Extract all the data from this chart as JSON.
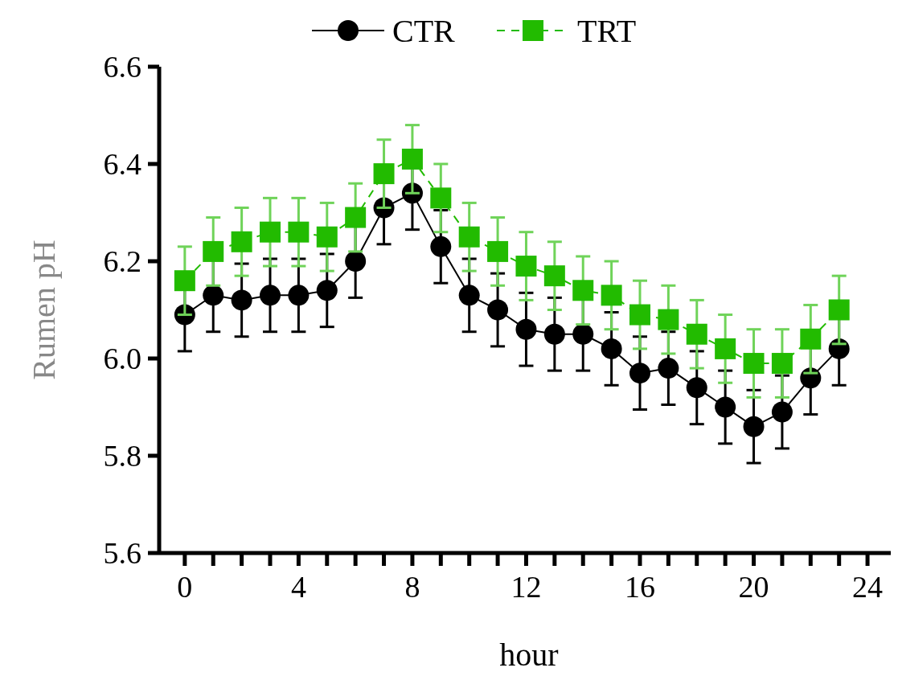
{
  "chart_data": {
    "type": "line",
    "xlabel": "hour",
    "ylabel": "Rumen pH",
    "x": [
      0,
      1,
      2,
      3,
      4,
      5,
      6,
      7,
      8,
      9,
      10,
      11,
      12,
      13,
      14,
      15,
      16,
      17,
      18,
      19,
      20,
      21,
      22,
      23
    ],
    "xlim": [
      -0.9,
      25.1
    ],
    "xticks": [
      0,
      {
        "value": 1,
        "label": null
      },
      {
        "value": 2,
        "label": null
      },
      {
        "value": 3,
        "label": null
      },
      4,
      {
        "value": 5,
        "label": null
      },
      {
        "value": 6,
        "label": null
      },
      {
        "value": 7,
        "label": null
      },
      8,
      {
        "value": 9,
        "label": null
      },
      {
        "value": 10,
        "label": null
      },
      {
        "value": 11,
        "label": null
      },
      12,
      {
        "value": 13,
        "label": null
      },
      {
        "value": 14,
        "label": null
      },
      {
        "value": 15,
        "label": null
      },
      16,
      {
        "value": 17,
        "label": null
      },
      {
        "value": 18,
        "label": null
      },
      {
        "value": 19,
        "label": null
      },
      20,
      {
        "value": 21,
        "label": null
      },
      {
        "value": 22,
        "label": null
      },
      {
        "value": 23,
        "label": null
      },
      24
    ],
    "ylim": [
      5.6,
      6.6
    ],
    "yticks": [
      {
        "value": 5.6,
        "label": "5.6"
      },
      {
        "value": 5.8,
        "label": "5.8"
      },
      {
        "value": 6,
        "label": "6.0"
      },
      {
        "value": 6.2,
        "label": "6.2"
      },
      {
        "value": 6.4,
        "label": "6.4"
      },
      {
        "value": 6.6,
        "label": "6.6"
      }
    ],
    "grid": false,
    "legend": "top",
    "series": [
      {
        "name": "CTR",
        "color": "#000000",
        "marker": "circle",
        "line_style": "solid",
        "values": [
          6.09,
          6.13,
          6.12,
          6.13,
          6.13,
          6.14,
          6.2,
          6.31,
          6.34,
          6.23,
          6.13,
          6.1,
          6.06,
          6.05,
          6.05,
          6.02,
          5.97,
          5.98,
          5.94,
          5.9,
          5.86,
          5.89,
          5.96,
          6.02
        ],
        "errors": [
          0.075,
          0.075,
          0.075,
          0.075,
          0.075,
          0.075,
          0.075,
          0.075,
          0.075,
          0.075,
          0.075,
          0.075,
          0.075,
          0.075,
          0.075,
          0.075,
          0.075,
          0.075,
          0.075,
          0.075,
          0.075,
          0.075,
          0.075,
          0.075
        ]
      },
      {
        "name": "TRT",
        "color": "#22bb00",
        "marker": "square",
        "line_style": "dashed",
        "values": [
          6.16,
          6.22,
          6.24,
          6.26,
          6.26,
          6.25,
          6.29,
          6.38,
          6.41,
          6.33,
          6.25,
          6.22,
          6.19,
          6.17,
          6.14,
          6.13,
          6.09,
          6.08,
          6.05,
          6.02,
          5.99,
          5.99,
          6.04,
          6.1
        ],
        "errors": [
          0.07,
          0.07,
          0.07,
          0.07,
          0.07,
          0.07,
          0.07,
          0.07,
          0.07,
          0.07,
          0.07,
          0.07,
          0.07,
          0.07,
          0.07,
          0.07,
          0.07,
          0.07,
          0.07,
          0.07,
          0.07,
          0.07,
          0.07,
          0.07
        ]
      }
    ]
  }
}
